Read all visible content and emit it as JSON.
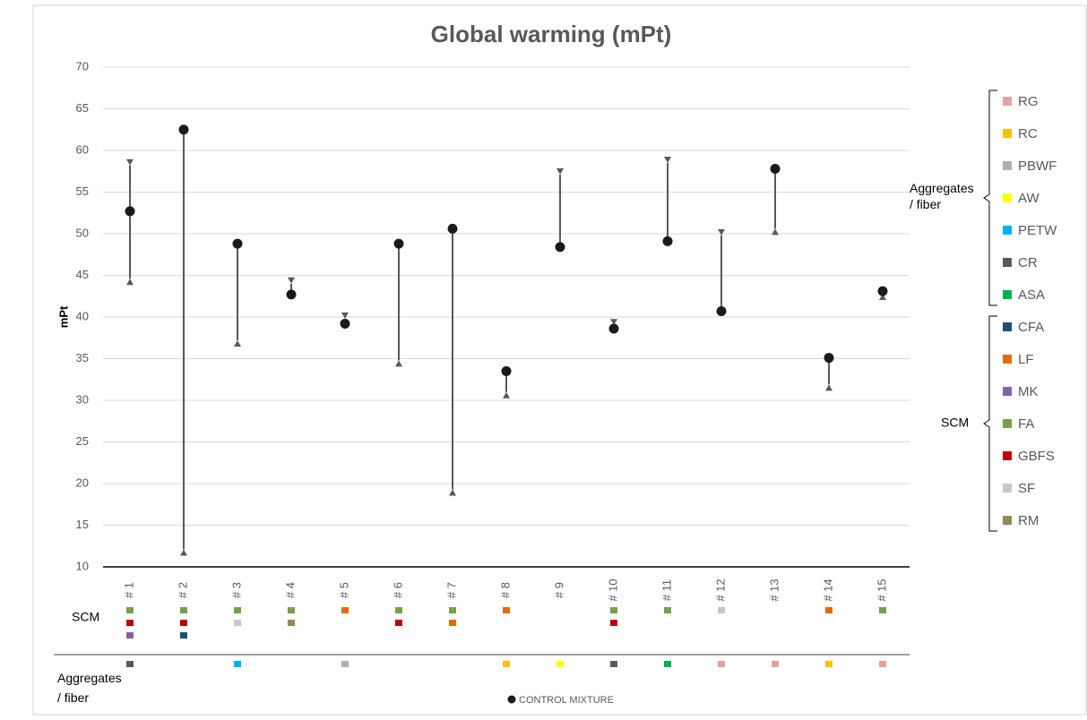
{
  "chart_data": {
    "type": "range-arrow",
    "title": "Global warming (mPt)",
    "y_label": "mPt",
    "categories": [
      "# 1",
      "# 2",
      "# 3",
      "# 4",
      "# 5",
      "# 6",
      "# 7",
      "# 8",
      "# 9",
      "# 10",
      "# 11",
      "# 12",
      "# 13",
      "# 14",
      "# 15"
    ],
    "series": [
      {
        "name": "CONTROL MIXTURE",
        "color": "#1a1a1a",
        "values": [
          52.7,
          62.5,
          48.8,
          42.7,
          39.2,
          48.8,
          50.6,
          33.5,
          48.4,
          38.6,
          49.1,
          40.7,
          57.8,
          35.1,
          43.1
        ]
      }
    ],
    "range_low": [
      44.6,
      12.1,
      37.2,
      42.7,
      39.2,
      34.8,
      19.3,
      31.0,
      48.4,
      38.6,
      49.1,
      40.7,
      50.6,
      31.9,
      42.8
    ],
    "range_high": [
      58.2,
      62.5,
      48.8,
      44.0,
      39.8,
      48.8,
      50.6,
      33.5,
      57.1,
      39.0,
      58.5,
      49.8,
      57.8,
      35.1,
      43.1
    ],
    "arrow_color": "#595959",
    "ylim": [
      10,
      70
    ],
    "yticks": [
      10,
      15,
      20,
      25,
      30,
      35,
      40,
      45,
      50,
      55,
      60,
      65,
      70
    ],
    "grid": true,
    "scm_row_label": "SCM",
    "aggregates_row_label": "Aggregates / fiber",
    "scm": [
      [
        "FA",
        "GBFS",
        "MK"
      ],
      [
        "FA",
        "GBFS",
        "CFA"
      ],
      [
        "FA",
        "SF"
      ],
      [
        "FA",
        "RM"
      ],
      [
        "LF"
      ],
      [
        "FA",
        "GBFS"
      ],
      [
        "FA",
        "LF"
      ],
      [
        "LF"
      ],
      [],
      [
        "FA",
        "GBFS"
      ],
      [
        "FA"
      ],
      [
        "SF"
      ],
      [],
      [
        "LF"
      ],
      [
        "FA"
      ]
    ],
    "aggregates": [
      [
        "CR"
      ],
      [],
      [
        "PETW"
      ],
      [],
      [
        "PBWF"
      ],
      [],
      [],
      [
        "RC"
      ],
      [
        "AW"
      ],
      [
        "CR"
      ],
      [
        "ASA"
      ],
      [
        "RG"
      ],
      [
        "RG"
      ],
      [
        "RC"
      ],
      [
        "RG"
      ]
    ],
    "legend_groups": [
      {
        "name": "Aggregates / fiber",
        "items": [
          {
            "name": "RG",
            "color": "#e6a0a0"
          },
          {
            "name": "RC",
            "color": "#ffc000"
          },
          {
            "name": "PBWF",
            "color": "#b0b0b0"
          },
          {
            "name": "AW",
            "color": "#ffff00"
          },
          {
            "name": "PETW",
            "color": "#00b0f0"
          },
          {
            "name": "CR",
            "color": "#595959"
          },
          {
            "name": "ASA",
            "color": "#00b050"
          }
        ]
      },
      {
        "name": "SCM",
        "items": [
          {
            "name": "CFA",
            "color": "#1f4e79"
          },
          {
            "name": "LF",
            "color": "#e36c09"
          },
          {
            "name": "MK",
            "color": "#8064a2"
          },
          {
            "name": "FA",
            "color": "#77a04a"
          },
          {
            "name": "GBFS",
            "color": "#c00000"
          },
          {
            "name": "SF",
            "color": "#c8c8c8"
          },
          {
            "name": "RM",
            "color": "#948a54"
          }
        ]
      }
    ]
  }
}
